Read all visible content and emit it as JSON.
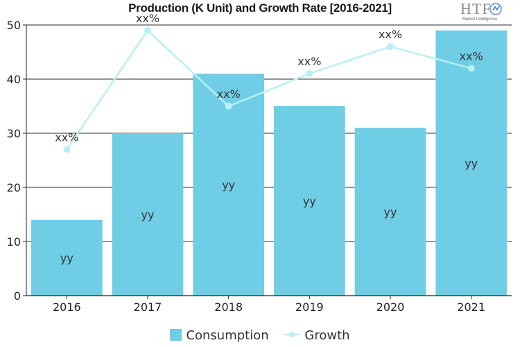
{
  "chart_data": {
    "type": "bar",
    "title": "Production (K Unit) and Growth Rate [2016-2021]",
    "categories": [
      "2016",
      "2017",
      "2018",
      "2019",
      "2020",
      "2021"
    ],
    "ylim": [
      0,
      50
    ],
    "yticks": [
      0,
      10,
      20,
      30,
      40,
      50
    ],
    "grid": true,
    "legend_position": "bottom",
    "series": [
      {
        "name": "Consumption",
        "type": "bar",
        "values": [
          14,
          30,
          41,
          35,
          31,
          49
        ],
        "labels": [
          "yy",
          "yy",
          "yy",
          "yy",
          "yy",
          "yy"
        ],
        "color": "#6fcde6"
      },
      {
        "name": "Growth",
        "type": "line",
        "values": [
          27,
          49,
          35,
          41,
          46,
          42
        ],
        "labels": [
          "xx%",
          "xx%",
          "xx%",
          "xx%",
          "xx%",
          "xx%"
        ],
        "color": "#b7f0f5"
      }
    ]
  },
  "logo": {
    "text": "HTF",
    "subtext": "Market Intelligence"
  }
}
